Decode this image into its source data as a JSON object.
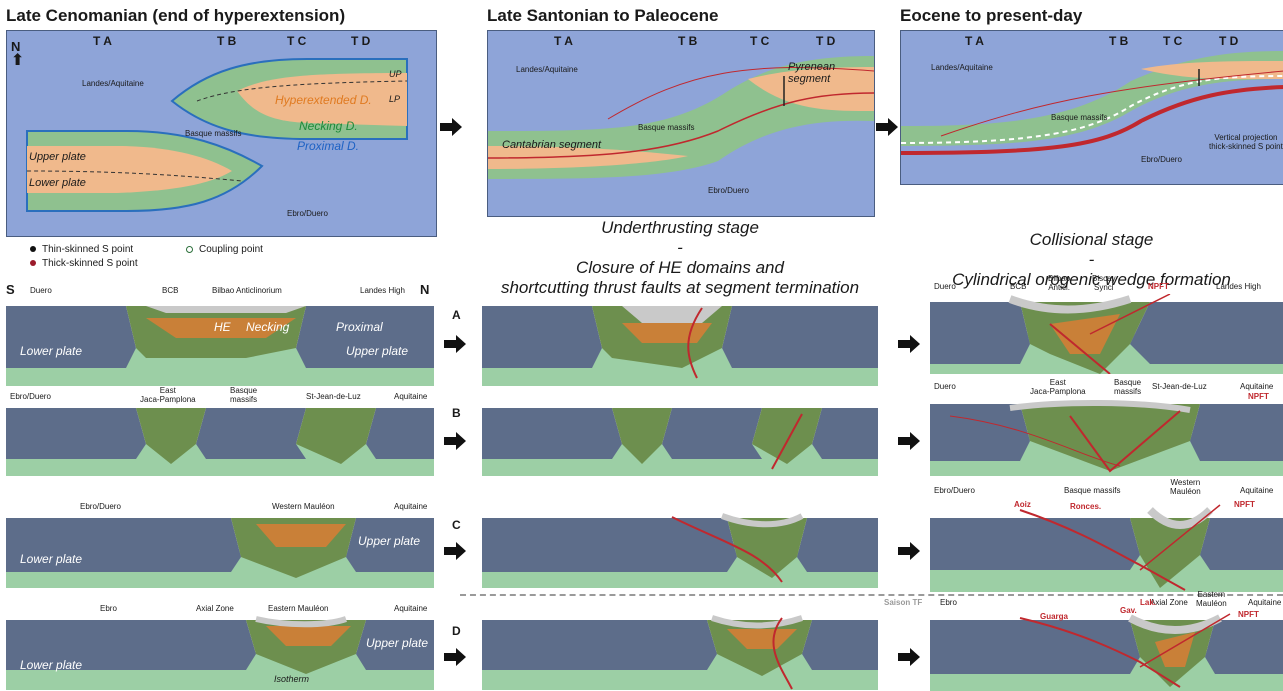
{
  "titles": {
    "t1": "Late Cenomanian (end of hyperextension)",
    "t2": "Late Santonian to Paleocene",
    "t3": "Eocene to present-day"
  },
  "stages": {
    "s2_line1": "Underthrusting stage",
    "s2_line2": "-",
    "s2_line3": "Closure of HE domains and",
    "s2_line4": "shortcutting thrust faults at segment termination",
    "s3_line1": "Collisional stage",
    "s3_line2": "-",
    "s3_line3": "Cylindrical orogenic wedge formation"
  },
  "section_markers": [
    "A",
    "B",
    "C",
    "D"
  ],
  "north": "N",
  "map1": {
    "landes": "Landes/Aquitaine",
    "basque": "Basque massifs",
    "ebro": "Ebro/Duero",
    "hyper": "Hyperextended D.",
    "necking": "Necking D.",
    "proximal": "Proximal D.",
    "up": "UP",
    "lp": "LP",
    "upper_plate": "Upper plate",
    "lower_plate": "Lower plate"
  },
  "map2": {
    "landes": "Landes/Aquitaine",
    "basque": "Basque massifs",
    "ebro": "Ebro/Duero",
    "pyrenean": "Pyrenean segment",
    "cantabrian": "Cantabrian segment"
  },
  "map3": {
    "landes": "Landes/Aquitaine",
    "basque": "Basque massifs",
    "ebro": "Ebro/Duero",
    "vertical1": "Vertical projection",
    "vertical2": "thick-skinned S point"
  },
  "legend": {
    "thin": "Thin-skinned S point",
    "thick": "Thick-skinned S point",
    "coupling": "Coupling point"
  },
  "compass": {
    "s": "S",
    "n": "N"
  },
  "rows": {
    "A": {
      "letter": "A",
      "l1": "Duero",
      "l2": "BCB",
      "l3": "Bilbao Anticlinorium",
      "l4": "Landes High",
      "he": "HE",
      "necking": "Necking",
      "proximal": "Proximal",
      "lower": "Lower plate",
      "upper": "Upper plate",
      "r_duero": "Duero",
      "r_bcb": "BCB",
      "r_bilbao": "Bilbao",
      "r_bilbao2": "Anticl.",
      "r_biscay": "Biscay",
      "r_biscay2": "Syncl",
      "r_landes": "Landes High",
      "r_npft": "NPFT"
    },
    "B": {
      "letter": "B",
      "l1": "Ebro/Duero",
      "l2a": "East",
      "l2b": "Jaca-Pamplona",
      "l3a": "Basque",
      "l3b": "massifs",
      "l4": "St-Jean-de-Luz",
      "l5": "Aquitaine",
      "r_duero": "Duero",
      "r_east": "East",
      "r_jaca": "Jaca-Pamplona",
      "r_basque": "Basque",
      "r_massifs": "massifs",
      "r_stjean": "St-Jean-de-Luz",
      "r_aquitaine": "Aquitaine",
      "r_npft": "NPFT"
    },
    "C": {
      "letter": "C",
      "l1": "Ebro/Duero",
      "l2": "Western Mauléon",
      "l3": "Aquitaine",
      "lower": "Lower plate",
      "upper": "Upper plate",
      "r_ebro": "Ebro/Duero",
      "r_basque": "Basque massifs",
      "r_western": "Western",
      "r_mauleon": "Mauléon",
      "r_aquitaine": "Aquitaine",
      "r_aoiz": "Aoiz",
      "r_ronces": "Ronces.",
      "r_npft": "NPFT"
    },
    "D": {
      "letter": "D",
      "l1": "Ebro",
      "l2": "Axial Zone",
      "l3": "Eastern Mauléon",
      "l4": "Aquitaine",
      "lower": "Lower plate",
      "upper": "Upper plate",
      "isotherm": "Isotherm",
      "saison": "Saison TF",
      "r_ebro": "Ebro",
      "r_axial": "Axial Zone",
      "r_eastern": "Eastern",
      "r_mauleon": "Mauléon",
      "r_aquitaine": "Aquitaine",
      "r_guarga": "Guarga",
      "r_gav": "Gav.",
      "r_lak": "Lak.",
      "r_npft": "NPFT"
    }
  },
  "colors": {
    "map_bg": "#8ea4d8",
    "necking": "#8fc18f",
    "hyper": "#f0b98c",
    "proximal_line": "#2a6fbd",
    "fault": "#c0282e",
    "crust": "#5d6d8a",
    "mantle": "#9ccfa5",
    "wedge": "#6d8f4e",
    "orange": "#c98038",
    "sediment": "#c9c9c9"
  }
}
